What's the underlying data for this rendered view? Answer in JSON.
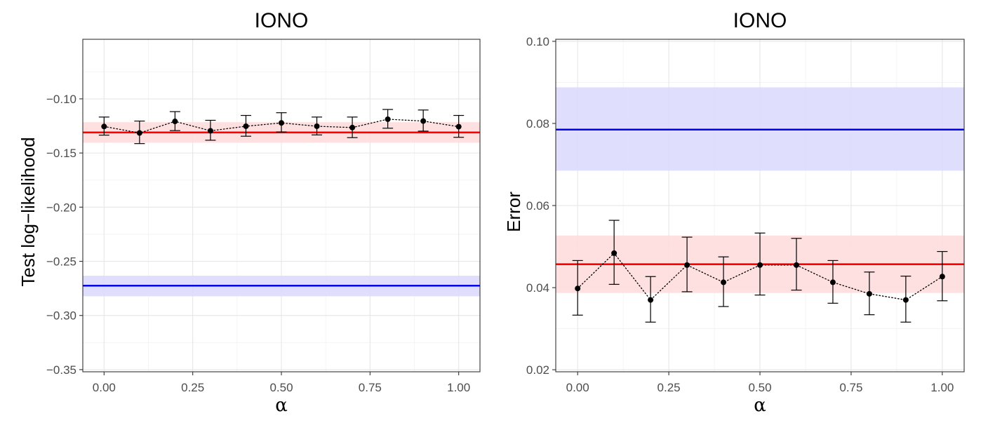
{
  "chart_data": [
    {
      "type": "line",
      "title": "IONO",
      "xlabel": "α",
      "ylabel": "Test log−likelihood",
      "xlim": [
        -0.06,
        1.06
      ],
      "ylim": [
        -0.352,
        -0.045
      ],
      "x_ticks": [
        0.0,
        0.25,
        0.5,
        0.75,
        1.0
      ],
      "x_tick_labels": [
        "0.00",
        "0.25",
        "0.50",
        "0.75",
        "1.00"
      ],
      "y_ticks": [
        -0.35,
        -0.3,
        -0.25,
        -0.2,
        -0.15,
        -0.1
      ],
      "y_tick_labels": [
        "−0.35",
        "−0.30",
        "−0.25",
        "−0.20",
        "−0.15",
        "−0.10"
      ],
      "grid": true,
      "series": [
        {
          "style": "dotted-points-errorbars",
          "color": "#000000",
          "x": [
            0.0,
            0.1,
            0.2,
            0.3,
            0.4,
            0.5,
            0.6,
            0.7,
            0.8,
            0.9,
            1.0
          ],
          "y": [
            -0.1255,
            -0.1315,
            -0.1208,
            -0.1295,
            -0.1253,
            -0.1222,
            -0.1253,
            -0.1265,
            -0.1188,
            -0.1205,
            -0.1257
          ],
          "y_low": [
            -0.1335,
            -0.1413,
            -0.1293,
            -0.1382,
            -0.1345,
            -0.1305,
            -0.1333,
            -0.1358,
            -0.1271,
            -0.1298,
            -0.1355
          ],
          "y_high": [
            -0.1168,
            -0.1205,
            -0.1118,
            -0.1198,
            -0.1153,
            -0.1128,
            -0.1168,
            -0.1168,
            -0.1098,
            -0.1103,
            -0.1153
          ]
        }
      ],
      "reference_bands": [
        {
          "color": "#ff0000",
          "fill": "#ffdddd",
          "y": -0.131,
          "low": -0.1405,
          "high": -0.1215
        },
        {
          "color": "#0000ee",
          "fill": "#dcdcfd",
          "y": -0.2725,
          "low": -0.2823,
          "high": -0.2633
        }
      ]
    },
    {
      "type": "line",
      "title": "IONO",
      "xlabel": "α",
      "ylabel": "Error",
      "xlim": [
        -0.06,
        1.06
      ],
      "ylim": [
        0.0195,
        0.1005
      ],
      "x_ticks": [
        0.0,
        0.25,
        0.5,
        0.75,
        1.0
      ],
      "x_tick_labels": [
        "0.00",
        "0.25",
        "0.50",
        "0.75",
        "1.00"
      ],
      "y_ticks": [
        0.02,
        0.04,
        0.06,
        0.08,
        0.1
      ],
      "y_tick_labels": [
        "0.02",
        "0.04",
        "0.06",
        "0.08",
        "0.10"
      ],
      "grid": true,
      "series": [
        {
          "style": "dotted-points-errorbars",
          "color": "#000000",
          "x": [
            0.0,
            0.1,
            0.2,
            0.3,
            0.4,
            0.5,
            0.6,
            0.7,
            0.8,
            0.9,
            1.0
          ],
          "y": [
            0.0398,
            0.0484,
            0.037,
            0.0455,
            0.0413,
            0.0455,
            0.0455,
            0.0413,
            0.0385,
            0.037,
            0.0427
          ],
          "y_low": [
            0.0333,
            0.0408,
            0.0316,
            0.039,
            0.0354,
            0.0382,
            0.0394,
            0.0362,
            0.0334,
            0.0316,
            0.0368
          ],
          "y_high": [
            0.0466,
            0.0564,
            0.0427,
            0.0523,
            0.0475,
            0.0533,
            0.052,
            0.0466,
            0.0438,
            0.0428,
            0.0488
          ]
        }
      ],
      "reference_bands": [
        {
          "color": "#ff0000",
          "fill": "#ffdddd",
          "y": 0.0457,
          "low": 0.0387,
          "high": 0.0527
        },
        {
          "color": "#0000ee",
          "fill": "#dcdcfd",
          "y": 0.0785,
          "low": 0.0685,
          "high": 0.0888
        }
      ]
    }
  ]
}
